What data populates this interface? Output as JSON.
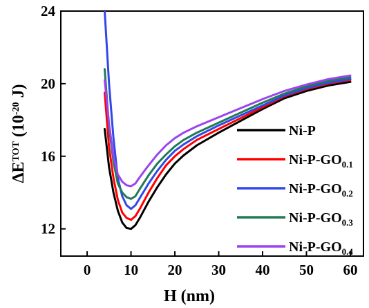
{
  "chart_data": {
    "type": "line",
    "xlabel": "H (nm)",
    "ylabel_main": "ΔE",
    "ylabel_sup": "TOT",
    "ylabel_unit_open": " (10",
    "ylabel_unit_sup": "-20",
    "ylabel_unit_close": " J)",
    "xlim": [
      -6,
      63
    ],
    "ylim": [
      10.5,
      24
    ],
    "xticks": [
      0,
      10,
      20,
      30,
      40,
      50,
      60
    ],
    "yticks": [
      12,
      16,
      20,
      24
    ],
    "grid": false,
    "legend_position": "right",
    "series": [
      {
        "label_main": "Ni-P",
        "label_sub": "",
        "color": "#000000",
        "points": [
          [
            4,
            17.5
          ],
          [
            5,
            15.4
          ],
          [
            6,
            14.0
          ],
          [
            7,
            13.0
          ],
          [
            8,
            12.35
          ],
          [
            9,
            12.05
          ],
          [
            10,
            12.0
          ],
          [
            11,
            12.2
          ],
          [
            12,
            12.6
          ],
          [
            14,
            13.5
          ],
          [
            16,
            14.3
          ],
          [
            18,
            15.0
          ],
          [
            20,
            15.6
          ],
          [
            22,
            16.05
          ],
          [
            25,
            16.6
          ],
          [
            30,
            17.3
          ],
          [
            35,
            17.95
          ],
          [
            40,
            18.6
          ],
          [
            45,
            19.2
          ],
          [
            50,
            19.6
          ],
          [
            55,
            19.9
          ],
          [
            60,
            20.1
          ]
        ]
      },
      {
        "label_main": "Ni-P-GO",
        "label_sub": "0.1",
        "color": "#ff0000",
        "points": [
          [
            4,
            19.5
          ],
          [
            5,
            16.5
          ],
          [
            6,
            14.8
          ],
          [
            7,
            13.6
          ],
          [
            8,
            12.9
          ],
          [
            9,
            12.6
          ],
          [
            10,
            12.5
          ],
          [
            11,
            12.7
          ],
          [
            12,
            13.1
          ],
          [
            14,
            14.0
          ],
          [
            16,
            14.8
          ],
          [
            18,
            15.5
          ],
          [
            20,
            16.0
          ],
          [
            22,
            16.4
          ],
          [
            25,
            16.9
          ],
          [
            30,
            17.5
          ],
          [
            35,
            18.1
          ],
          [
            40,
            18.7
          ],
          [
            45,
            19.3
          ],
          [
            50,
            19.7
          ],
          [
            55,
            20.0
          ],
          [
            60,
            20.2
          ]
        ]
      },
      {
        "label_main": "Ni-P-GO",
        "label_sub": "0.2",
        "color": "#3048e8",
        "points": [
          [
            4,
            24.0
          ],
          [
            5,
            20.0
          ],
          [
            6,
            17.0
          ],
          [
            7,
            14.8
          ],
          [
            8,
            13.8
          ],
          [
            9,
            13.3
          ],
          [
            10,
            13.1
          ],
          [
            11,
            13.3
          ],
          [
            12,
            13.7
          ],
          [
            14,
            14.5
          ],
          [
            16,
            15.2
          ],
          [
            18,
            15.8
          ],
          [
            20,
            16.3
          ],
          [
            22,
            16.65
          ],
          [
            25,
            17.1
          ],
          [
            30,
            17.7
          ],
          [
            35,
            18.25
          ],
          [
            40,
            18.8
          ],
          [
            45,
            19.35
          ],
          [
            50,
            19.75
          ],
          [
            55,
            20.05
          ],
          [
            60,
            20.25
          ]
        ]
      },
      {
        "label_main": "Ni-P-GO",
        "label_sub": "0.3",
        "color": "#1f7a55",
        "points": [
          [
            4,
            20.8
          ],
          [
            5,
            17.6
          ],
          [
            6,
            15.7
          ],
          [
            7,
            14.5
          ],
          [
            8,
            14.0
          ],
          [
            9,
            13.75
          ],
          [
            10,
            13.65
          ],
          [
            11,
            13.8
          ],
          [
            12,
            14.2
          ],
          [
            14,
            14.95
          ],
          [
            16,
            15.6
          ],
          [
            18,
            16.1
          ],
          [
            20,
            16.55
          ],
          [
            22,
            16.9
          ],
          [
            25,
            17.3
          ],
          [
            30,
            17.85
          ],
          [
            35,
            18.4
          ],
          [
            40,
            18.95
          ],
          [
            45,
            19.45
          ],
          [
            50,
            19.85
          ],
          [
            55,
            20.15
          ],
          [
            60,
            20.35
          ]
        ]
      },
      {
        "label_main": "Ni-P-GO",
        "label_sub": "0.4",
        "color": "#9b44ee",
        "points": [
          [
            4,
            20.2
          ],
          [
            5,
            17.8
          ],
          [
            6,
            16.0
          ],
          [
            7,
            15.0
          ],
          [
            8,
            14.6
          ],
          [
            9,
            14.4
          ],
          [
            10,
            14.35
          ],
          [
            11,
            14.5
          ],
          [
            12,
            14.85
          ],
          [
            14,
            15.5
          ],
          [
            16,
            16.1
          ],
          [
            18,
            16.6
          ],
          [
            20,
            17.0
          ],
          [
            22,
            17.3
          ],
          [
            25,
            17.65
          ],
          [
            30,
            18.15
          ],
          [
            35,
            18.65
          ],
          [
            40,
            19.15
          ],
          [
            45,
            19.6
          ],
          [
            50,
            19.95
          ],
          [
            55,
            20.25
          ],
          [
            60,
            20.45
          ]
        ]
      }
    ]
  }
}
